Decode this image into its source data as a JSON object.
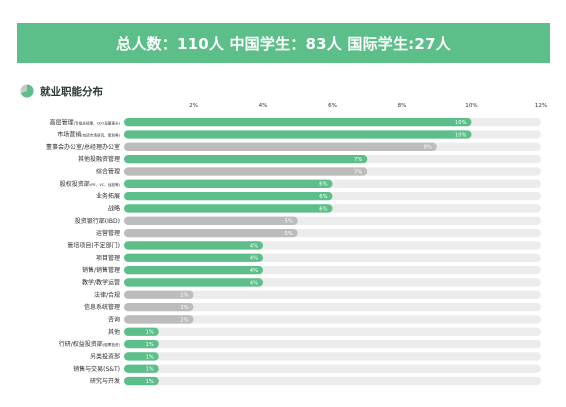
{
  "header": {
    "summary": "总人数：110人  中国学生：83人  国际学生:27人"
  },
  "section": {
    "title": "就业职能分布",
    "icon": "pie-chart-icon"
  },
  "colors": {
    "highlight": "#5cbf8a",
    "secondary": "#bcbcbc",
    "track": "#ececec",
    "banner": "#5cbf8a"
  },
  "chart_data": {
    "type": "bar",
    "orientation": "horizontal",
    "x_ticks": [
      "2%",
      "4%",
      "6%",
      "8%",
      "10%",
      "12%"
    ],
    "xlim": [
      0,
      12
    ],
    "categories": [
      {
        "label": "高层管理",
        "sub": "(专指总经理、CEO及董事长)"
      },
      {
        "label": "市场营销",
        "sub": "(包括市场研究、策划等)"
      },
      {
        "label": "董事会办公室/总经理办公室",
        "sub": ""
      },
      {
        "label": "其他投融资管理",
        "sub": ""
      },
      {
        "label": "综合管理",
        "sub": ""
      },
      {
        "label": "股权投资部",
        "sub": "(PE、VC、战投等)"
      },
      {
        "label": "业务拓展",
        "sub": ""
      },
      {
        "label": "战略",
        "sub": ""
      },
      {
        "label": "投资银行部(IBD)",
        "sub": ""
      },
      {
        "label": "运营管理",
        "sub": ""
      },
      {
        "label": "管培项目(不定部门)",
        "sub": ""
      },
      {
        "label": "项目管理",
        "sub": ""
      },
      {
        "label": "销售/销售管理",
        "sub": ""
      },
      {
        "label": "教学/教学运营",
        "sub": ""
      },
      {
        "label": "法律/合规",
        "sub": ""
      },
      {
        "label": "信息系统管理",
        "sub": ""
      },
      {
        "label": "咨询",
        "sub": ""
      },
      {
        "label": "其他",
        "sub": ""
      },
      {
        "label": "行研/权益投资部",
        "sub": "(股票投资)"
      },
      {
        "label": "另类投资部",
        "sub": ""
      },
      {
        "label": "销售与交易(S&T)",
        "sub": ""
      },
      {
        "label": "研究与开发",
        "sub": ""
      }
    ],
    "values": [
      10,
      10,
      9,
      7,
      7,
      6,
      6,
      6,
      5,
      5,
      4,
      4,
      4,
      4,
      2,
      2,
      2,
      1,
      1,
      1,
      1,
      1
    ],
    "value_labels": [
      "10%",
      "10%",
      "9%",
      "7%",
      "7%",
      "6%",
      "6%",
      "6%",
      "5%",
      "5%",
      "4%",
      "4%",
      "4%",
      "4%",
      "2%",
      "2%",
      "2%",
      "1%",
      "1%",
      "1%",
      "1%",
      "1%"
    ],
    "highlight": [
      true,
      true,
      false,
      true,
      false,
      true,
      true,
      true,
      false,
      false,
      true,
      true,
      true,
      true,
      false,
      false,
      false,
      true,
      true,
      true,
      true,
      true
    ]
  }
}
